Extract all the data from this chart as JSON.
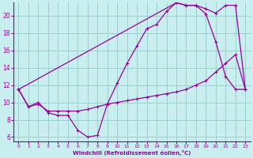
{
  "bg_color": "#c8eef0",
  "line_color": "#990099",
  "grid_color": "#9ecece",
  "xlabel": "Windchill (Refroidissement éolien,°C)",
  "xlabel_color": "#990099",
  "xtick_color": "#990099",
  "ytick_color": "#990099",
  "xlim": [
    -0.5,
    23.5
  ],
  "ylim": [
    5.5,
    21.5
  ],
  "yticks": [
    6,
    8,
    10,
    12,
    14,
    16,
    18,
    20
  ],
  "xticks": [
    0,
    1,
    2,
    3,
    4,
    5,
    6,
    7,
    8,
    9,
    10,
    11,
    12,
    13,
    14,
    15,
    16,
    17,
    18,
    19,
    20,
    21,
    22,
    23
  ],
  "line1_x": [
    0,
    1,
    2,
    3,
    4,
    5,
    6,
    7,
    8,
    9,
    10,
    11,
    12,
    13,
    14,
    15,
    16,
    17,
    18,
    19,
    20,
    21,
    22,
    23
  ],
  "line1_y": [
    11.5,
    9.5,
    10.0,
    8.8,
    8.5,
    8.5,
    6.8,
    6.0,
    6.2,
    9.8,
    12.2,
    14.5,
    16.5,
    18.5,
    19.0,
    20.5,
    21.5,
    21.2,
    21.2,
    20.2,
    17.0,
    13.0,
    11.5,
    11.5
  ],
  "line2_x": [
    0,
    16,
    17,
    18,
    19,
    20,
    21,
    22,
    23
  ],
  "line2_y": [
    11.5,
    21.5,
    21.2,
    21.2,
    20.8,
    20.3,
    21.2,
    21.2,
    11.5
  ],
  "line3_x": [
    0,
    1,
    2,
    3,
    4,
    5,
    6,
    7,
    8,
    9,
    10,
    11,
    12,
    13,
    14,
    15,
    16,
    17,
    18,
    19,
    20,
    21,
    22,
    23
  ],
  "line3_y": [
    11.5,
    9.5,
    9.8,
    9.0,
    9.0,
    9.0,
    9.0,
    9.2,
    9.5,
    9.8,
    10.0,
    10.2,
    10.4,
    10.6,
    10.8,
    11.0,
    11.2,
    11.5,
    12.0,
    12.5,
    13.5,
    14.5,
    15.5,
    11.5
  ]
}
